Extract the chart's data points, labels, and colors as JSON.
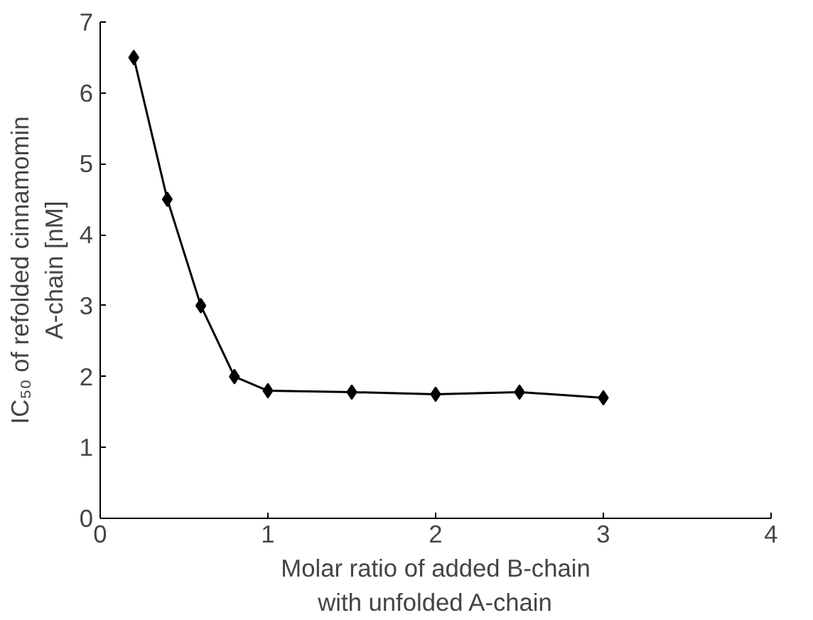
{
  "chart_data": {
    "type": "line",
    "xlabel": "Molar ratio of added B-chain\nwith unfolded A-chain",
    "ylabel": "IC₅₀ of refolded cinnamomin\nA-chain [nM]",
    "x": [
      0.2,
      0.4,
      0.6,
      0.8,
      1.0,
      1.5,
      2.0,
      2.5,
      3.0
    ],
    "series": [
      {
        "color": "#000000",
        "values": [
          6.5,
          4.5,
          3.0,
          2.0,
          1.8,
          1.78,
          1.75,
          1.78,
          1.7
        ]
      }
    ],
    "xlim": [
      0,
      4
    ],
    "xticks": [
      0,
      1,
      2,
      3,
      4
    ],
    "ylim": [
      0,
      7
    ],
    "yticks": [
      0,
      1,
      2,
      3,
      4,
      5,
      6,
      7
    ],
    "grid": false,
    "marker": "diamond",
    "line_style": "solid"
  }
}
